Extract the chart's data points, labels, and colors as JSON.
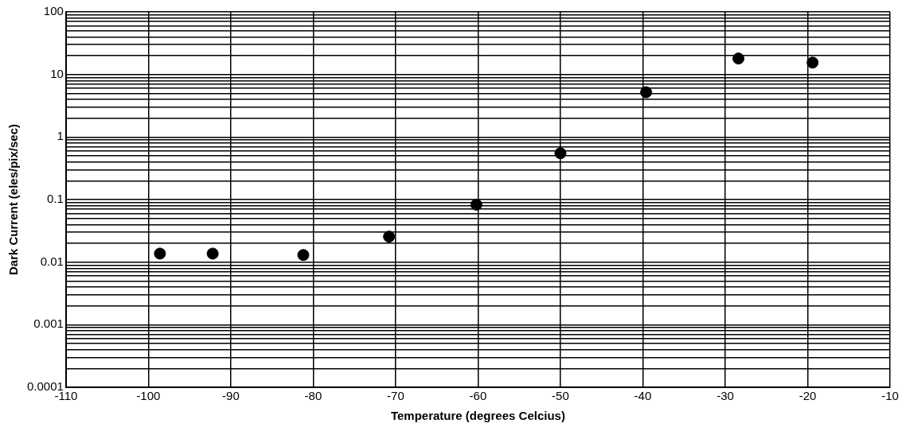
{
  "chart_data": {
    "type": "scatter",
    "xlabel": "Temperature (degrees Celcius)",
    "ylabel": "Dark Current (eles/pix/sec)",
    "x": [
      -98.6,
      -92.2,
      -81.2,
      -70.8,
      -60.2,
      -50,
      -39.6,
      -28.4,
      -19.4
    ],
    "series": [
      {
        "color": "#000000",
        "values": [
          0.0137,
          0.0137,
          0.013,
          0.0256,
          0.083,
          0.55,
          5.2,
          18,
          15.5
        ]
      }
    ],
    "xlim": [
      -110,
      -10
    ],
    "xticks": [
      -110,
      -100,
      -90,
      -80,
      -70,
      -60,
      -50,
      -40,
      -30,
      -20,
      -10
    ],
    "ylim": [
      0.0001,
      100
    ],
    "log": "y",
    "yticks": [
      {
        "value": 0.0001,
        "label": "0.0001"
      },
      {
        "value": 0.0002,
        "label": null
      },
      {
        "value": 0.0003,
        "label": null
      },
      {
        "value": 0.0004,
        "label": null
      },
      {
        "value": 0.0005,
        "label": null
      },
      {
        "value": 0.0006,
        "label": null
      },
      {
        "value": 0.0007,
        "label": null
      },
      {
        "value": 0.0008,
        "label": null
      },
      {
        "value": 0.0009,
        "label": null
      },
      {
        "value": 0.001,
        "label": "0.001"
      },
      {
        "value": 0.002,
        "label": null
      },
      {
        "value": 0.003,
        "label": null
      },
      {
        "value": 0.004,
        "label": null
      },
      {
        "value": 0.005,
        "label": null
      },
      {
        "value": 0.006,
        "label": null
      },
      {
        "value": 0.007,
        "label": null
      },
      {
        "value": 0.008,
        "label": null
      },
      {
        "value": 0.009,
        "label": null
      },
      {
        "value": 0.01,
        "label": "0.01"
      },
      {
        "value": 0.02,
        "label": null
      },
      {
        "value": 0.03,
        "label": null
      },
      {
        "value": 0.04,
        "label": null
      },
      {
        "value": 0.05,
        "label": null
      },
      {
        "value": 0.06,
        "label": null
      },
      {
        "value": 0.07,
        "label": null
      },
      {
        "value": 0.08,
        "label": null
      },
      {
        "value": 0.09,
        "label": null
      },
      {
        "value": 0.1,
        "label": "0.1"
      },
      {
        "value": 0.2,
        "label": null
      },
      {
        "value": 0.3,
        "label": null
      },
      {
        "value": 0.4,
        "label": null
      },
      {
        "value": 0.5,
        "label": null
      },
      {
        "value": 0.6,
        "label": null
      },
      {
        "value": 0.7,
        "label": null
      },
      {
        "value": 0.8,
        "label": null
      },
      {
        "value": 0.9,
        "label": null
      },
      {
        "value": 1,
        "label": "1"
      },
      {
        "value": 2,
        "label": null
      },
      {
        "value": 3,
        "label": null
      },
      {
        "value": 4,
        "label": null
      },
      {
        "value": 5,
        "label": null
      },
      {
        "value": 6,
        "label": null
      },
      {
        "value": 7,
        "label": null
      },
      {
        "value": 8,
        "label": null
      },
      {
        "value": 9,
        "label": null
      },
      {
        "value": 10,
        "label": "10"
      },
      {
        "value": 20,
        "label": null
      },
      {
        "value": 30,
        "label": null
      },
      {
        "value": 40,
        "label": null
      },
      {
        "value": 50,
        "label": null
      },
      {
        "value": 60,
        "label": null
      },
      {
        "value": 70,
        "label": null
      },
      {
        "value": 80,
        "label": null
      },
      {
        "value": 90,
        "label": null
      },
      {
        "value": 100,
        "label": "100"
      }
    ],
    "grid": true,
    "legend": false,
    "marker": "circle"
  }
}
